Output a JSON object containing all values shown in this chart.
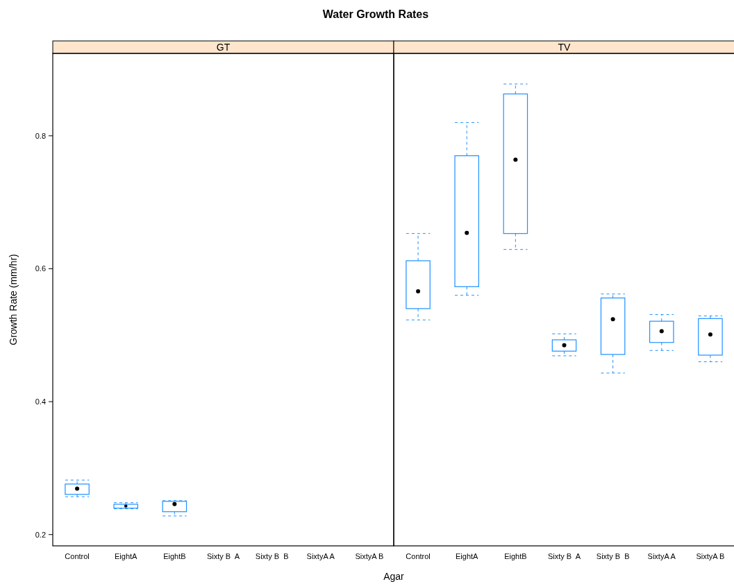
{
  "chart_data": [
    {
      "type": "box",
      "title": "GT",
      "ylabel": "Growth Rate (mm/hr)",
      "annotations": [
        "Water Growth Rates"
      ],
      "categories": [
        "Control",
        "EightA",
        "EightB",
        "Sixty B  A",
        "Sixty B  B",
        "SixtyA A",
        "SixtyA B"
      ],
      "series": [
        {
          "color": "#1e90ff",
          "boxes": [
            {
              "low": 0.257,
              "q1": 0.2605,
              "median": 0.269,
              "q3": 0.276,
              "high": 0.282
            },
            {
              "low": 0.239,
              "q1": 0.2397,
              "median": 0.243,
              "q3": 0.2456,
              "high": 0.248
            },
            {
              "low": 0.228,
              "q1": 0.2344,
              "median": 0.246,
              "q3": 0.25,
              "high": 0.251
            },
            null,
            null,
            null,
            null
          ]
        }
      ],
      "ylim": [
        0.183,
        0.924
      ],
      "yticks": [
        0.2,
        0.4,
        0.6,
        0.8
      ]
    },
    {
      "type": "box",
      "title": "TV",
      "xlabel": "Agar",
      "categories": [
        "Control",
        "EightA",
        "EightB",
        "Sixty B  A",
        "Sixty B  B",
        "SixtyA A",
        "SixtyA B"
      ],
      "series": [
        {
          "color": "#1e90ff",
          "boxes": [
            {
              "low": 0.523,
              "q1": 0.54,
              "median": 0.566,
              "q3": 0.612,
              "high": 0.653
            },
            {
              "low": 0.56,
              "q1": 0.573,
              "median": 0.654,
              "q3": 0.77,
              "high": 0.82
            },
            {
              "low": 0.629,
              "q1": 0.653,
              "median": 0.764,
              "q3": 0.863,
              "high": 0.878
            },
            {
              "low": 0.469,
              "q1": 0.476,
              "median": 0.485,
              "q3": 0.493,
              "high": 0.502
            },
            {
              "low": 0.443,
              "q1": 0.471,
              "median": 0.524,
              "q3": 0.556,
              "high": 0.562
            },
            {
              "low": 0.477,
              "q1": 0.489,
              "median": 0.506,
              "q3": 0.521,
              "high": 0.531
            },
            {
              "low": 0.46,
              "q1": 0.47,
              "median": 0.501,
              "q3": 0.525,
              "high": 0.529
            }
          ]
        }
      ],
      "ylim": [
        0.183,
        0.924
      ],
      "yticks": [
        0.2,
        0.4,
        0.6,
        0.8
      ],
      "tick_labels": "x"
    }
  ]
}
